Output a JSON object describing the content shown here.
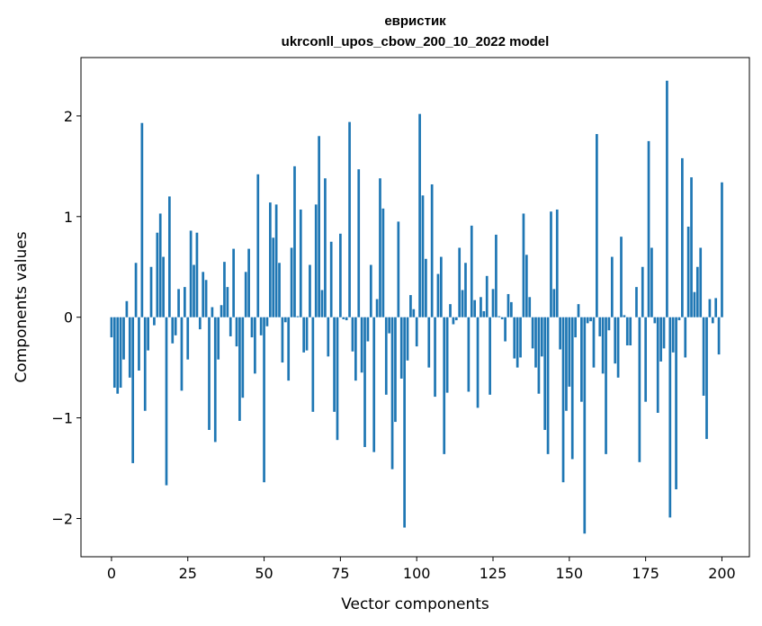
{
  "chart_data": {
    "type": "bar",
    "title_line1": "евристик",
    "title_line2": "ukrconll_upos_cbow_200_10_2022 model",
    "xlabel": "Vector components",
    "ylabel": "Components values",
    "xlim": [
      -10,
      209
    ],
    "ylim": [
      -2.38,
      2.58
    ],
    "xticks": [
      0,
      25,
      50,
      75,
      100,
      125,
      150,
      175,
      200
    ],
    "yticks": [
      -2,
      -1,
      0,
      1,
      2
    ],
    "ytick_labels": [
      "−2",
      "−1",
      "0",
      "1",
      "2"
    ],
    "bar_color": "#1f77b4",
    "grid": false,
    "values": [
      -0.2,
      -0.7,
      -0.76,
      -0.7,
      -0.42,
      0.16,
      -0.6,
      -1.45,
      0.54,
      -0.53,
      1.93,
      -0.93,
      -0.33,
      0.5,
      -0.08,
      0.84,
      1.03,
      0.6,
      -1.67,
      1.2,
      -0.26,
      -0.18,
      0.28,
      -0.73,
      0.3,
      -0.42,
      0.86,
      0.52,
      0.84,
      -0.12,
      0.45,
      0.37,
      -1.12,
      0.1,
      -1.24,
      -0.42,
      0.12,
      0.55,
      0.3,
      -0.19,
      0.68,
      -0.29,
      -1.03,
      -0.8,
      0.45,
      0.68,
      -0.2,
      -0.56,
      1.42,
      -0.18,
      -1.64,
      -0.09,
      1.14,
      0.79,
      1.12,
      0.54,
      -0.45,
      -0.05,
      -0.63,
      0.69,
      1.5,
      0.01,
      1.07,
      -0.35,
      -0.33,
      0.52,
      -0.94,
      1.12,
      1.8,
      0.27,
      1.38,
      -0.39,
      0.75,
      -0.94,
      -1.22,
      0.83,
      -0.02,
      -0.03,
      1.94,
      -0.34,
      -0.63,
      1.47,
      -0.55,
      -1.29,
      -0.24,
      0.52,
      -1.34,
      0.18,
      1.38,
      1.08,
      -0.77,
      -0.16,
      -1.51,
      -1.04,
      0.95,
      -0.61,
      -2.09,
      -0.43,
      0.22,
      0.08,
      -0.29,
      2.02,
      1.21,
      0.58,
      -0.5,
      1.32,
      -0.79,
      0.43,
      0.6,
      -1.36,
      -0.75,
      0.13,
      -0.07,
      -0.03,
      0.69,
      0.27,
      0.54,
      -0.74,
      0.91,
      0.17,
      -0.9,
      0.2,
      0.06,
      0.41,
      -0.77,
      0.28,
      0.82,
      0.01,
      -0.02,
      -0.24,
      0.23,
      0.15,
      -0.41,
      -0.5,
      -0.4,
      1.03,
      0.62,
      0.2,
      -0.31,
      -0.5,
      -0.76,
      -0.39,
      -1.12,
      -1.36,
      1.05,
      0.28,
      1.07,
      -0.32,
      -1.64,
      -0.93,
      -0.69,
      -1.41,
      -0.2,
      0.13,
      -0.84,
      -2.15,
      -0.06,
      -0.04,
      -0.5,
      1.82,
      -0.19,
      -0.56,
      -1.36,
      -0.13,
      0.6,
      -0.46,
      -0.6,
      0.8,
      0.02,
      -0.28,
      -0.28,
      0.0,
      0.3,
      -1.44,
      0.5,
      -0.84,
      1.75,
      0.69,
      -0.06,
      -0.95,
      -0.44,
      -0.31,
      2.35,
      -1.99,
      -0.35,
      -1.71,
      -0.03,
      1.58,
      -0.4,
      0.9,
      1.39,
      0.25,
      0.5,
      0.69,
      -0.78,
      -1.21,
      0.18,
      -0.06,
      0.19,
      -0.37,
      1.34
    ]
  }
}
